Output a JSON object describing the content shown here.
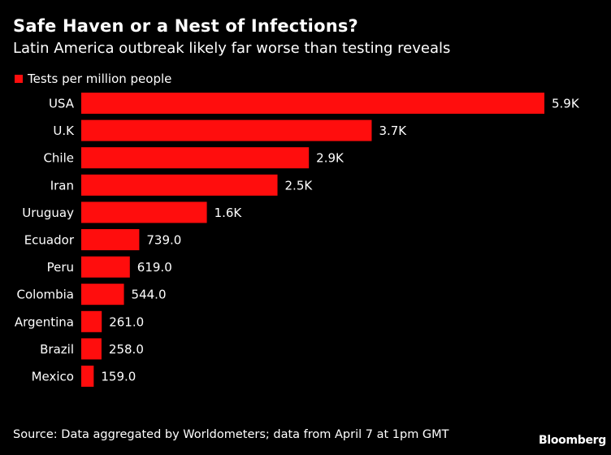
{
  "colors": {
    "background": "#000000",
    "bar": "#ff0d0d",
    "text": "#ffffff"
  },
  "footer": {
    "source": "Source: Data aggregated by Worldometers; data from April 7 at 1pm GMT",
    "brand": "Bloomberg"
  },
  "chart_data": {
    "type": "bar",
    "orientation": "horizontal",
    "title": "Safe Haven or a Nest of Infections?",
    "subtitle": "Latin America outbreak likely far worse than testing reveals",
    "legend": [
      {
        "name": "Tests per million people",
        "color": "#ff0d0d"
      }
    ],
    "legend_position": "top-left",
    "grid": false,
    "categories": [
      "USA",
      "U.K",
      "Chile",
      "Iran",
      "Uruguay",
      "Ecuador",
      "Peru",
      "Colombia",
      "Argentina",
      "Brazil",
      "Mexico"
    ],
    "series": [
      {
        "name": "Tests per million people",
        "values": [
          5900,
          3700,
          2900,
          2500,
          1600,
          739,
          619,
          544,
          261,
          258,
          159
        ],
        "labels": [
          "5.9K",
          "3.7K",
          "2.9K",
          "2.5K",
          "1.6K",
          "739.0",
          "619.0",
          "544.0",
          "261.0",
          "258.0",
          "159.0"
        ]
      }
    ],
    "xlim": [
      0,
      5900
    ]
  }
}
